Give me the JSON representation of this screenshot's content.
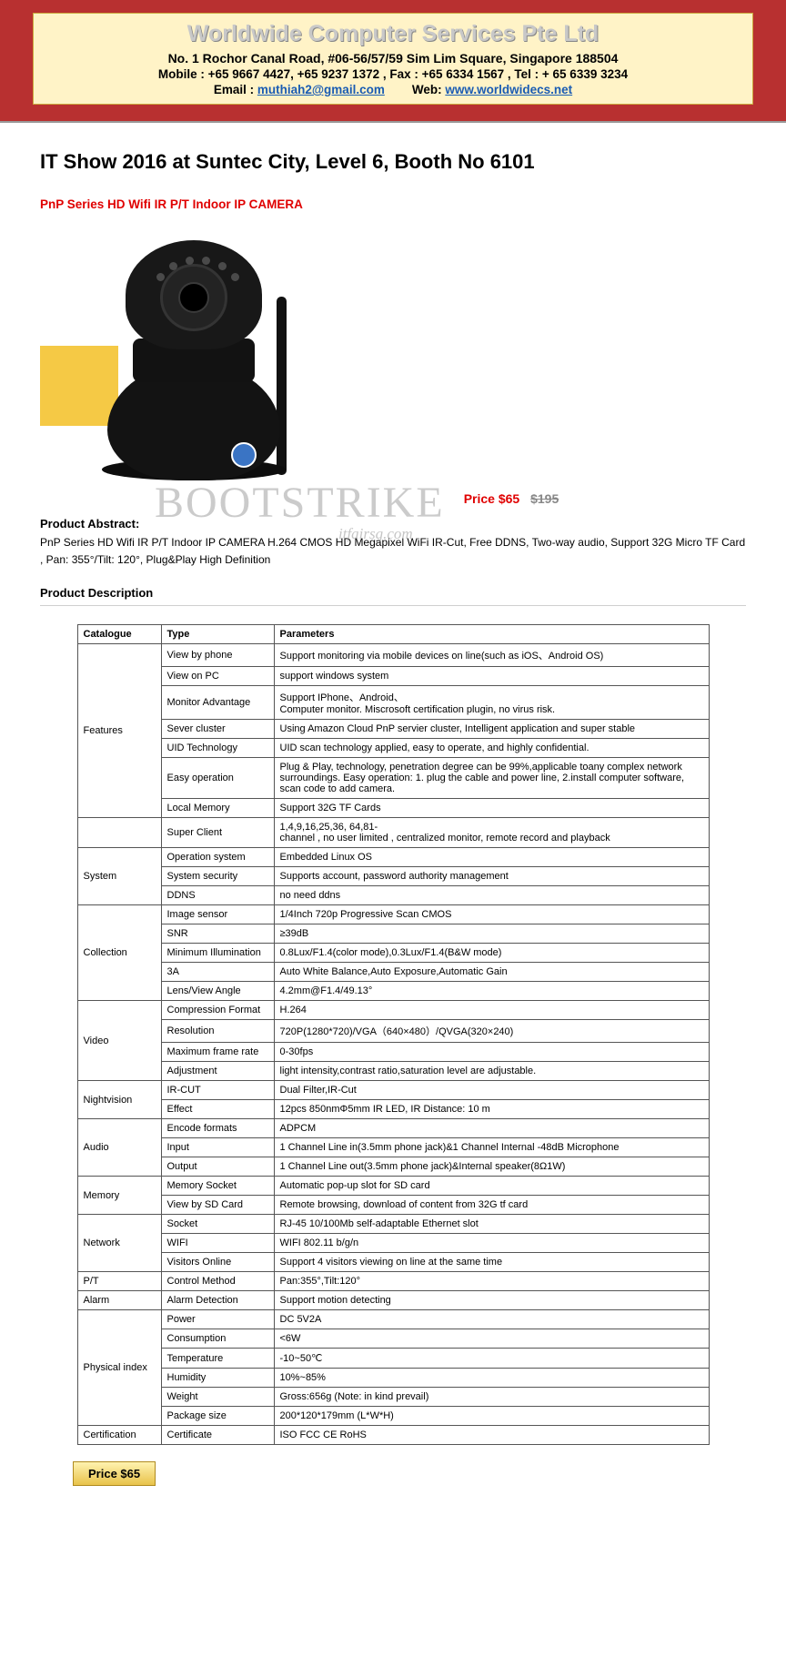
{
  "header": {
    "company": "Worldwide Computer Services Pte Ltd",
    "address": "No. 1 Rochor Canal Road,  #06-56/57/59 Sim Lim Square, Singapore 188504",
    "mobile1": "+65 9667 4427",
    "mobile2": "+65 9237 1372",
    "fax": "+65 6334 1567",
    "tel": "+ 65 6339 3234",
    "email_label": "Email :",
    "email": "muthiah2@gmail.com",
    "web_label": "Web:",
    "web": "www.worldwidecs.net",
    "mobile_label": "Mobile :",
    "fax_label": ",   Fax :",
    "tel_label": ", Tel :"
  },
  "event_title": "IT Show 2016 at Suntec City, Level 6, Booth No 6101",
  "product_name": "PnP Series HD Wifi IR P/T Indoor IP CAMERA",
  "watermark": "BOOTSTRIKE",
  "watermark_sub": "itfairsg.com",
  "price": {
    "label": "Price",
    "current": "$65",
    "old": "$195"
  },
  "abstract_label": "Product Abstract:",
  "abstract_text": "PnP Series HD Wifi IR P/T Indoor IP CAMERA H.264 CMOS HD Megapixel WiFi IR-Cut, Free DDNS, Two-way audio, Support 32G Micro TF Card , Pan: 355°/Tilt: 120°, Plug&Play High Definition",
  "desc_title": "Product Description",
  "table_headers": {
    "cat": "Catalogue",
    "type": "Type",
    "param": "Parameters"
  },
  "specs": [
    {
      "cat": "Features",
      "rows": [
        {
          "type": "View by phone",
          "param": "Support monitoring via mobile devices on line(such as iOS、Android OS)"
        },
        {
          "type": "View on PC",
          "param": "support windows system"
        },
        {
          "type": "Monitor Advantage",
          "param": "Support  IPhone、Android、\nComputer monitor. Miscrosoft certification plugin, no virus risk."
        },
        {
          "type": "Sever cluster",
          "param": "Using Amazon Cloud PnP servier cluster, Intelligent application and super stable"
        },
        {
          "type": "UID Technology",
          "param": "UID scan technology applied, easy to operate, and highly confidential."
        },
        {
          "type": "Easy operation",
          "param": "Plug & Play,  technology, penetration degree can be 99%,applicable toany complex network surroundings. Easy operation: 1. plug the cable and power line, 2.install computer software, scan code to add camera."
        },
        {
          "type": "Local Memory",
          "param": "Support 32G TF Cards"
        }
      ]
    },
    {
      "cat": "",
      "rows": [
        {
          "type": "Super Client",
          "param": "1,4,9,16,25,36, 64,81-\nchannel , no user limited , centralized monitor, remote record and playback"
        }
      ]
    },
    {
      "cat": "System",
      "rows": [
        {
          "type": "Operation system",
          "param": "Embedded Linux OS"
        },
        {
          "type": "System security",
          "param": "Supports account, password authority management"
        },
        {
          "type": "DDNS",
          "param": "no need ddns"
        }
      ]
    },
    {
      "cat": "Collection",
      "rows": [
        {
          "type": "Image sensor",
          "param": "1/4Inch 720p Progressive Scan CMOS"
        },
        {
          "type": "SNR",
          "param": "≥39dB"
        },
        {
          "type": "Minimum Illumination",
          "param": "0.8Lux/F1.4(color mode),0.3Lux/F1.4(B&W mode)"
        },
        {
          "type": "3A",
          "param": "Auto White Balance,Auto Exposure,Automatic Gain"
        },
        {
          "type": "Lens/View Angle",
          "param": "4.2mm@F1.4/49.13°"
        }
      ]
    },
    {
      "cat": "Video",
      "rows": [
        {
          "type": "Compression Format",
          "param": "H.264"
        },
        {
          "type": "Resolution",
          "param": "720P(1280*720)/VGA（640×480）/QVGA(320×240)"
        },
        {
          "type": "Maximum frame rate",
          "param": "0-30fps"
        },
        {
          "type": "Adjustment",
          "param": "light intensity,contrast ratio,saturation level are adjustable."
        }
      ]
    },
    {
      "cat": "Nightvision",
      "rows": [
        {
          "type": "IR-CUT",
          "param": "Dual Filter,IR-Cut"
        },
        {
          "type": "Effect",
          "param": "12pcs 850nmΦ5mm IR LED,     IR Distance: 10 m"
        }
      ]
    },
    {
      "cat": "Audio",
      "rows": [
        {
          "type": "Encode formats",
          "param": "ADPCM"
        },
        {
          "type": "Input",
          "param": "1 Channel Line in(3.5mm phone jack)&1 Channel Internal -48dB Microphone"
        },
        {
          "type": "Output",
          "param": "1 Channel Line out(3.5mm phone jack)&Internal speaker(8Ω1W)"
        }
      ]
    },
    {
      "cat": "Memory",
      "rows": [
        {
          "type": "Memory Socket",
          "param": "Automatic pop-up slot for SD card"
        },
        {
          "type": "View by SD Card",
          "param": "Remote browsing, download of content from 32G tf card"
        }
      ]
    },
    {
      "cat": "Network",
      "rows": [
        {
          "type": "Socket",
          "param": "RJ-45    10/100Mb   self-adaptable Ethernet slot"
        },
        {
          "type": "WIFI",
          "param": "WIFI 802.11 b/g/n"
        },
        {
          "type": "Visitors Online",
          "param": "Support 4 visitors viewing on line at the same time"
        }
      ]
    },
    {
      "cat": "P/T",
      "rows": [
        {
          "type": "Control Method",
          "param": "Pan:355°,Tilt:120°"
        }
      ]
    },
    {
      "cat": "Alarm",
      "rows": [
        {
          "type": "Alarm Detection",
          "param": "Support motion detecting"
        }
      ]
    },
    {
      "cat": "Physical index",
      "rows": [
        {
          "type": "Power",
          "param": "DC 5V2A"
        },
        {
          "type": "Consumption",
          "param": "<6W"
        },
        {
          "type": "Temperature",
          "param": "-10~50℃"
        },
        {
          "type": "Humidity",
          "param": "10%~85%"
        },
        {
          "type": "Weight",
          "param": "Gross:656g     (Note: in kind prevail)"
        },
        {
          "type": "Package size",
          "param": "200*120*179mm (L*W*H)"
        }
      ]
    },
    {
      "cat": "Certification",
      "rows": [
        {
          "type": "Certificate",
          "param": "ISO FCC CE RoHS"
        }
      ]
    }
  ],
  "badge": "Price $65"
}
